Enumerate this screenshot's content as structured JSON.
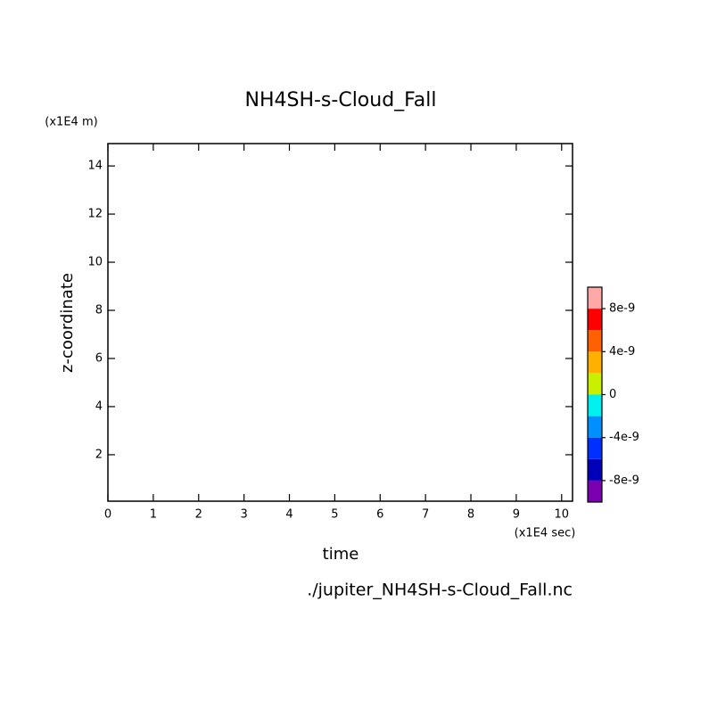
{
  "chart_data": {
    "type": "contour",
    "title": "NH4SH-s-Cloud_Fall",
    "xlabel": "time",
    "ylabel": "z-coordinate",
    "xunit": "(x1E4 sec)",
    "yunit": "(x1E4 m)",
    "footer": "./jupiter_NH4SH-s-Cloud_Fall.nc",
    "xlim": [
      0,
      10.24
    ],
    "ylim": [
      0.07,
      14.93
    ],
    "xticks": [
      0,
      1,
      2,
      3,
      4,
      5,
      6,
      7,
      8,
      9,
      10
    ],
    "yticks": [
      2,
      4,
      6,
      8,
      10,
      12,
      14
    ],
    "colorbar": {
      "levels": [
        -1e-08,
        -8e-09,
        -6e-09,
        -4e-09,
        -2e-09,
        0,
        2e-09,
        4e-09,
        6e-09,
        8e-09,
        1e-08
      ],
      "colors": [
        "#7a00b0",
        "#0000b8",
        "#0030ff",
        "#0090ff",
        "#00f0f0",
        "#c8f000",
        "#ffb000",
        "#ff6000",
        "#ff0000",
        "#ffa8a8"
      ],
      "ticks": [
        {
          "value": -8e-09,
          "label": "-8e-9"
        },
        {
          "value": -4e-09,
          "label": "-4e-9"
        },
        0,
        {
          "value": 4e-09,
          "label": "4e-9"
        },
        {
          "value": 8e-09,
          "label": "8e-9"
        }
      ]
    }
  }
}
